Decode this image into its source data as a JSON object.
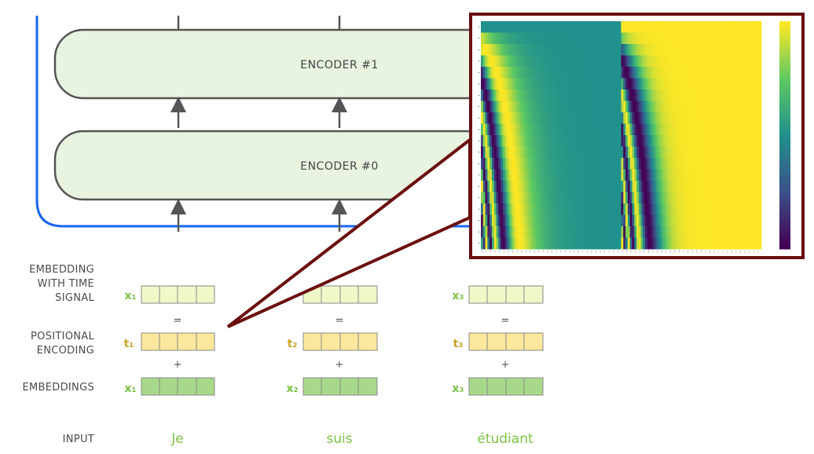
{
  "encoders": [
    {
      "label": "ENCODER #1"
    },
    {
      "label": "ENCODER #0"
    }
  ],
  "row_labels": {
    "embedding_with_time_signal": [
      "EMBEDDING",
      "WITH TIME",
      "SIGNAL"
    ],
    "positional_encoding": [
      "POSITIONAL",
      "ENCODING"
    ],
    "embeddings": "EMBEDDINGS",
    "input": "INPUT"
  },
  "operators": {
    "equals": "=",
    "plus": "+"
  },
  "columns": [
    {
      "x_top": "x₁",
      "t": "t₁",
      "x_bottom": "x₁",
      "word": "Je"
    },
    {
      "x_top": "",
      "t": "t₂",
      "x_bottom": "x₂",
      "word": "suis"
    },
    {
      "x_top": "x₃",
      "t": "t₃",
      "x_bottom": "x₃",
      "word": "étudiant"
    }
  ],
  "colors": {
    "encoder_fill": "#e8f3e0",
    "encoder_stroke": "#555555",
    "loop_stroke": "#1a66ee",
    "x_sym": "#7cc243",
    "t_sym": "#c9a227",
    "time_signal_fill": "#eef8c8",
    "positional_fill": "#fbe89c",
    "embedding_fill": "#a8d98a",
    "callout_border": "#6b0f0f",
    "word": "#7cc243"
  },
  "heatmap": {
    "colormap": "viridis",
    "description_rows": 20,
    "columns": 128
  }
}
